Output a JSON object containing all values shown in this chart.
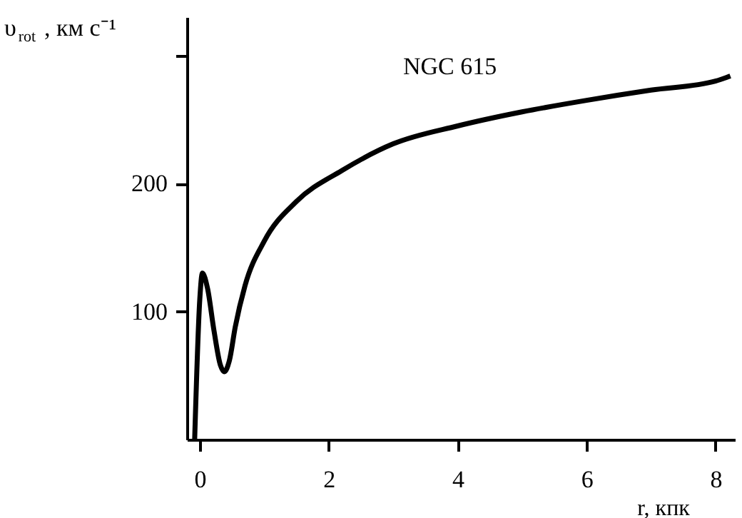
{
  "chart_data": {
    "type": "line",
    "xlabel": "r, кпк",
    "ylabel": "υ$_{rot}$, км с⁻¹",
    "annotations": [
      "NGC 615"
    ],
    "x": [
      -0.08,
      0.0,
      0.04,
      0.12,
      0.22,
      0.32,
      0.38,
      0.46,
      0.55,
      0.7,
      1.0,
      1.5,
      2.2,
      3.0,
      4.0,
      5.0,
      6.0,
      7.0,
      8.0,
      8.23
    ],
    "series": [
      {
        "color": "#000000",
        "values": [
          0,
          110,
          130,
          118,
          85,
          58,
          53,
          62,
          88,
          120,
          155,
          186,
          210,
          231,
          245,
          256,
          265,
          273,
          280,
          284
        ]
      }
    ],
    "xlim": [
      -0.2,
      8.3
    ],
    "xticks": [
      0,
      2,
      4,
      6,
      8
    ],
    "ylim": [
      0,
      330
    ],
    "yticks": [
      100,
      200,
      {
        "value": 300,
        "label": null
      }
    ],
    "grid": false,
    "marker": "none",
    "line_style": "solid"
  }
}
